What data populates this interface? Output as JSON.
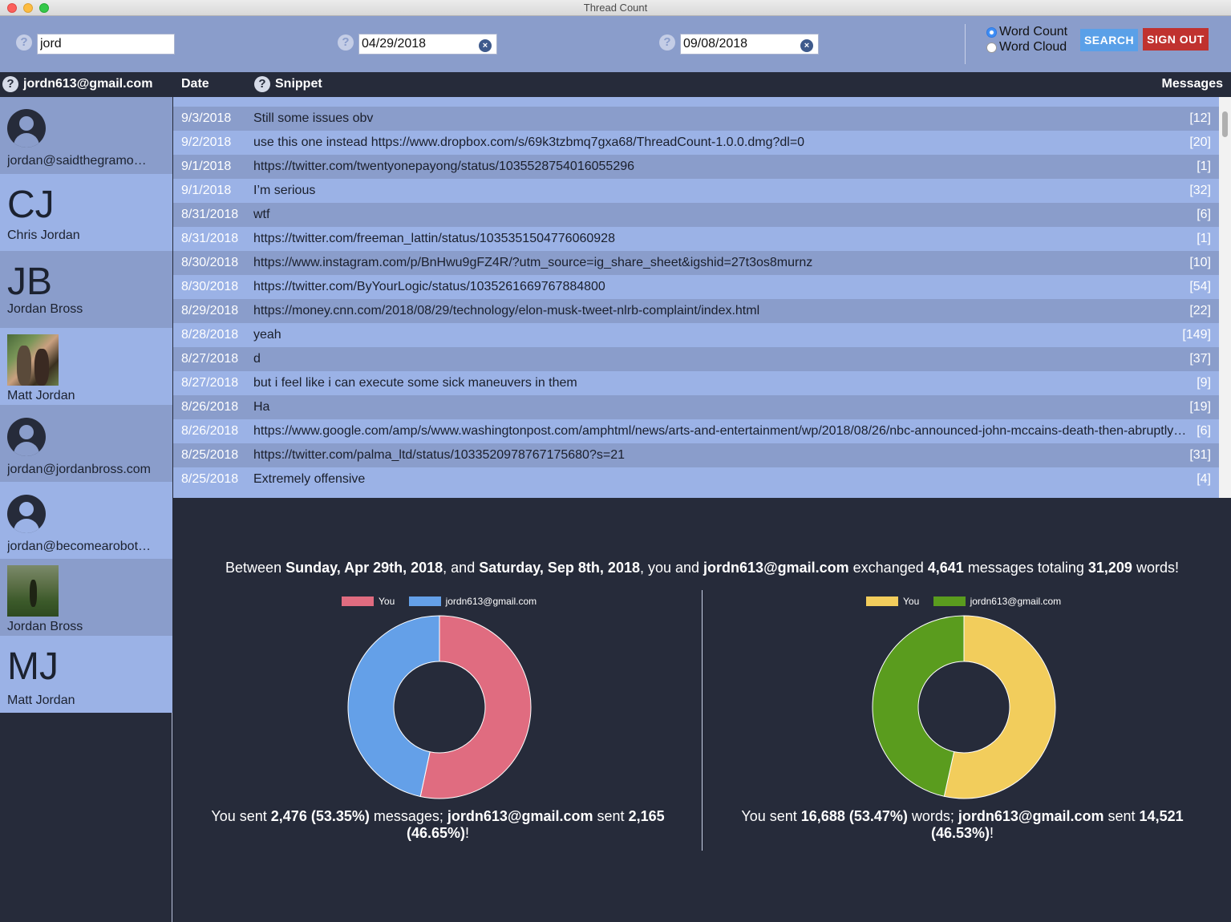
{
  "window": {
    "title": "Thread Count"
  },
  "toolbar": {
    "search_value": "jord",
    "start_date": "04/29/2018",
    "end_date": "09/08/2018",
    "help_glyph": "?",
    "clear_glyph": "×",
    "mode_options": [
      "Word Count",
      "Word Cloud"
    ],
    "mode_selected": "Word Count",
    "search_label": "SEARCH",
    "signout_label": "SIGN OUT"
  },
  "header": {
    "account": "jordn613@gmail.com",
    "col_date": "Date",
    "col_snippet": "Snippet",
    "col_messages": "Messages"
  },
  "sidebar": {
    "contacts": [
      {
        "name": "jordan@saidthegramo…",
        "avatar": "person-icon"
      },
      {
        "name": "Chris Jordan",
        "avatar": "initials",
        "initials": "CJ"
      },
      {
        "name": "Jordan Bross",
        "avatar": "initials",
        "initials": "JB"
      },
      {
        "name": "Matt Jordan",
        "avatar": "photo"
      },
      {
        "name": "jordan@jordanbross.com",
        "avatar": "person-icon"
      },
      {
        "name": "jordan@becomearobot…",
        "avatar": "person-icon"
      },
      {
        "name": "Jordan Bross",
        "avatar": "photo"
      },
      {
        "name": "Matt Jordan",
        "avatar": "initials",
        "initials": "MJ"
      }
    ]
  },
  "messages": [
    {
      "date": "9/3/2018",
      "snippet": "Still some issues obv",
      "count": "[12]"
    },
    {
      "date": "9/2/2018",
      "snippet": "use this one instead https://www.dropbox.com/s/69k3tzbmq7gxa68/ThreadCount-1.0.0.dmg?dl=0",
      "count": "[20]"
    },
    {
      "date": "9/1/2018",
      "snippet": "https://twitter.com/twentyonepayong/status/1035528754016055296",
      "count": "[1]"
    },
    {
      "date": "9/1/2018",
      "snippet": "I’m serious",
      "count": "[32]"
    },
    {
      "date": "8/31/2018",
      "snippet": "wtf",
      "count": "[6]"
    },
    {
      "date": "8/31/2018",
      "snippet": "https://twitter.com/freeman_lattin/status/1035351504776060928",
      "count": "[1]"
    },
    {
      "date": "8/30/2018",
      "snippet": "https://www.instagram.com/p/BnHwu9gFZ4R/?utm_source=ig_share_sheet&igshid=27t3os8murnz",
      "count": "[10]"
    },
    {
      "date": "8/30/2018",
      "snippet": "https://twitter.com/ByYourLogic/status/1035261669767884800",
      "count": "[54]"
    },
    {
      "date": "8/29/2018",
      "snippet": "https://money.cnn.com/2018/08/29/technology/elon-musk-tweet-nlrb-complaint/index.html",
      "count": "[22]"
    },
    {
      "date": "8/28/2018",
      "snippet": "yeah",
      "count": "[149]"
    },
    {
      "date": "8/27/2018",
      "snippet": "d",
      "count": "[37]"
    },
    {
      "date": "8/27/2018",
      "snippet": "but i feel like i can execute some sick maneuvers in them",
      "count": "[9]"
    },
    {
      "date": "8/26/2018",
      "snippet": "Ha",
      "count": "[19]"
    },
    {
      "date": "8/26/2018",
      "snippet": "https://www.google.com/amp/s/www.washingtonpost.com/amphtml/news/arts-and-entertainment/wp/2018/08/26/nbc-announced-john-mccains-death-then-abruptly…",
      "count": "[6]"
    },
    {
      "date": "8/25/2018",
      "snippet": "https://twitter.com/palma_ltd/status/1033520978767175680?s=21",
      "count": "[31]"
    },
    {
      "date": "8/25/2018",
      "snippet": "Extremely offensive",
      "count": "[4]"
    }
  ],
  "summary": {
    "p1": "Between ",
    "start": "Sunday, Apr 29th, 2018",
    "p2": ", and ",
    "end": "Saturday, Sep 8th, 2018",
    "p3": ", you and ",
    "contact": "jordn613@gmail.com",
    "p4": " exchanged ",
    "messages": "4,641",
    "p5": " messages totaling ",
    "words": "31,209",
    "p6": " words!"
  },
  "chart_data": [
    {
      "type": "pie",
      "legend_position": "top",
      "categories": [
        "You",
        "jordn613@gmail.com"
      ],
      "values": [
        2476,
        2165
      ],
      "colors": [
        "#e06c80",
        "#64a0e8"
      ],
      "caption": {
        "p1": "You sent ",
        "you": "2,476 (53.35%)",
        "p2": " messages; ",
        "contact": "jordn613@gmail.com",
        "p3": " sent ",
        "them": "2,165 (46.65%)",
        "p4": "!"
      }
    },
    {
      "type": "pie",
      "legend_position": "top",
      "categories": [
        "You",
        "jordn613@gmail.com"
      ],
      "values": [
        16688,
        14521
      ],
      "colors": [
        "#f2cd5c",
        "#5a9c1e"
      ],
      "caption": {
        "p1": "You sent ",
        "you": "16,688 (53.47%)",
        "p2": " words; ",
        "contact": "jordn613@gmail.com",
        "p3": " sent ",
        "them": "14,521 (46.53%)",
        "p4": "!"
      }
    }
  ],
  "colors": {
    "toolbar_bg": "#8a9dcb",
    "row_dark": "#8a9dcb",
    "row_light": "#9bb2e6",
    "panel_bg": "#262b3a",
    "search_btn": "#5aa0e8",
    "signout_btn": "#c0322f"
  }
}
